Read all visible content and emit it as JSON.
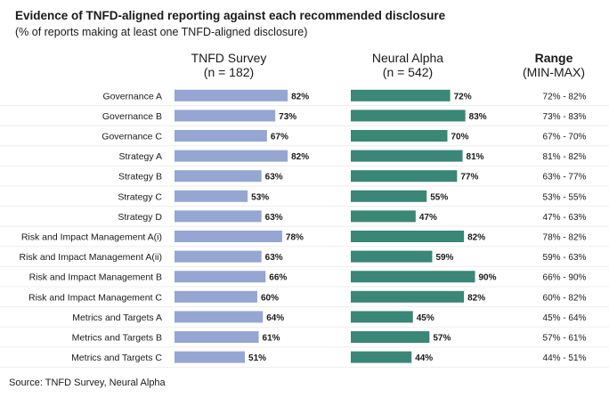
{
  "chart_data": {
    "type": "bar",
    "title": "Evidence of TNFD-aligned reporting against each recommended disclosure",
    "subtitle": "(% of reports making at least one TNFD-aligned disclosure)",
    "categories": [
      "Governance A",
      "Governance B",
      "Governance C",
      "Strategy A",
      "Strategy B",
      "Strategy C",
      "Strategy D",
      "Risk and Impact Management A(i)",
      "Risk and Impact Management A(ii)",
      "Risk and Impact Management B",
      "Risk and Impact Management C",
      "Metrics and Targets A",
      "Metrics and Targets B",
      "Metrics and Targets C"
    ],
    "series": [
      {
        "name": "TNFD Survey",
        "sample": "(n = 182)",
        "color": "#95a6d2",
        "values": [
          82,
          73,
          67,
          82,
          63,
          53,
          63,
          78,
          63,
          66,
          60,
          64,
          61,
          51
        ]
      },
      {
        "name": "Neural Alpha",
        "sample": "(n = 542)",
        "color": "#3a8677",
        "values": [
          72,
          83,
          70,
          81,
          77,
          55,
          47,
          82,
          59,
          90,
          82,
          45,
          57,
          44
        ]
      }
    ],
    "range_header": {
      "title": "Range",
      "subtitle": "(MIN-MAX)"
    },
    "range_labels": [
      "72% - 82%",
      "73% - 83%",
      "67% - 70%",
      "81% - 82%",
      "63% - 77%",
      "53% - 55%",
      "47% - 63%",
      "78% - 82%",
      "59% - 63%",
      "66% - 90%",
      "60% - 82%",
      "45% - 64%",
      "57% - 61%",
      "44% - 51%"
    ],
    "value_suffix": "%",
    "xlim": [
      0,
      100
    ],
    "source": "Source: TNFD Survey, Neural Alpha"
  }
}
